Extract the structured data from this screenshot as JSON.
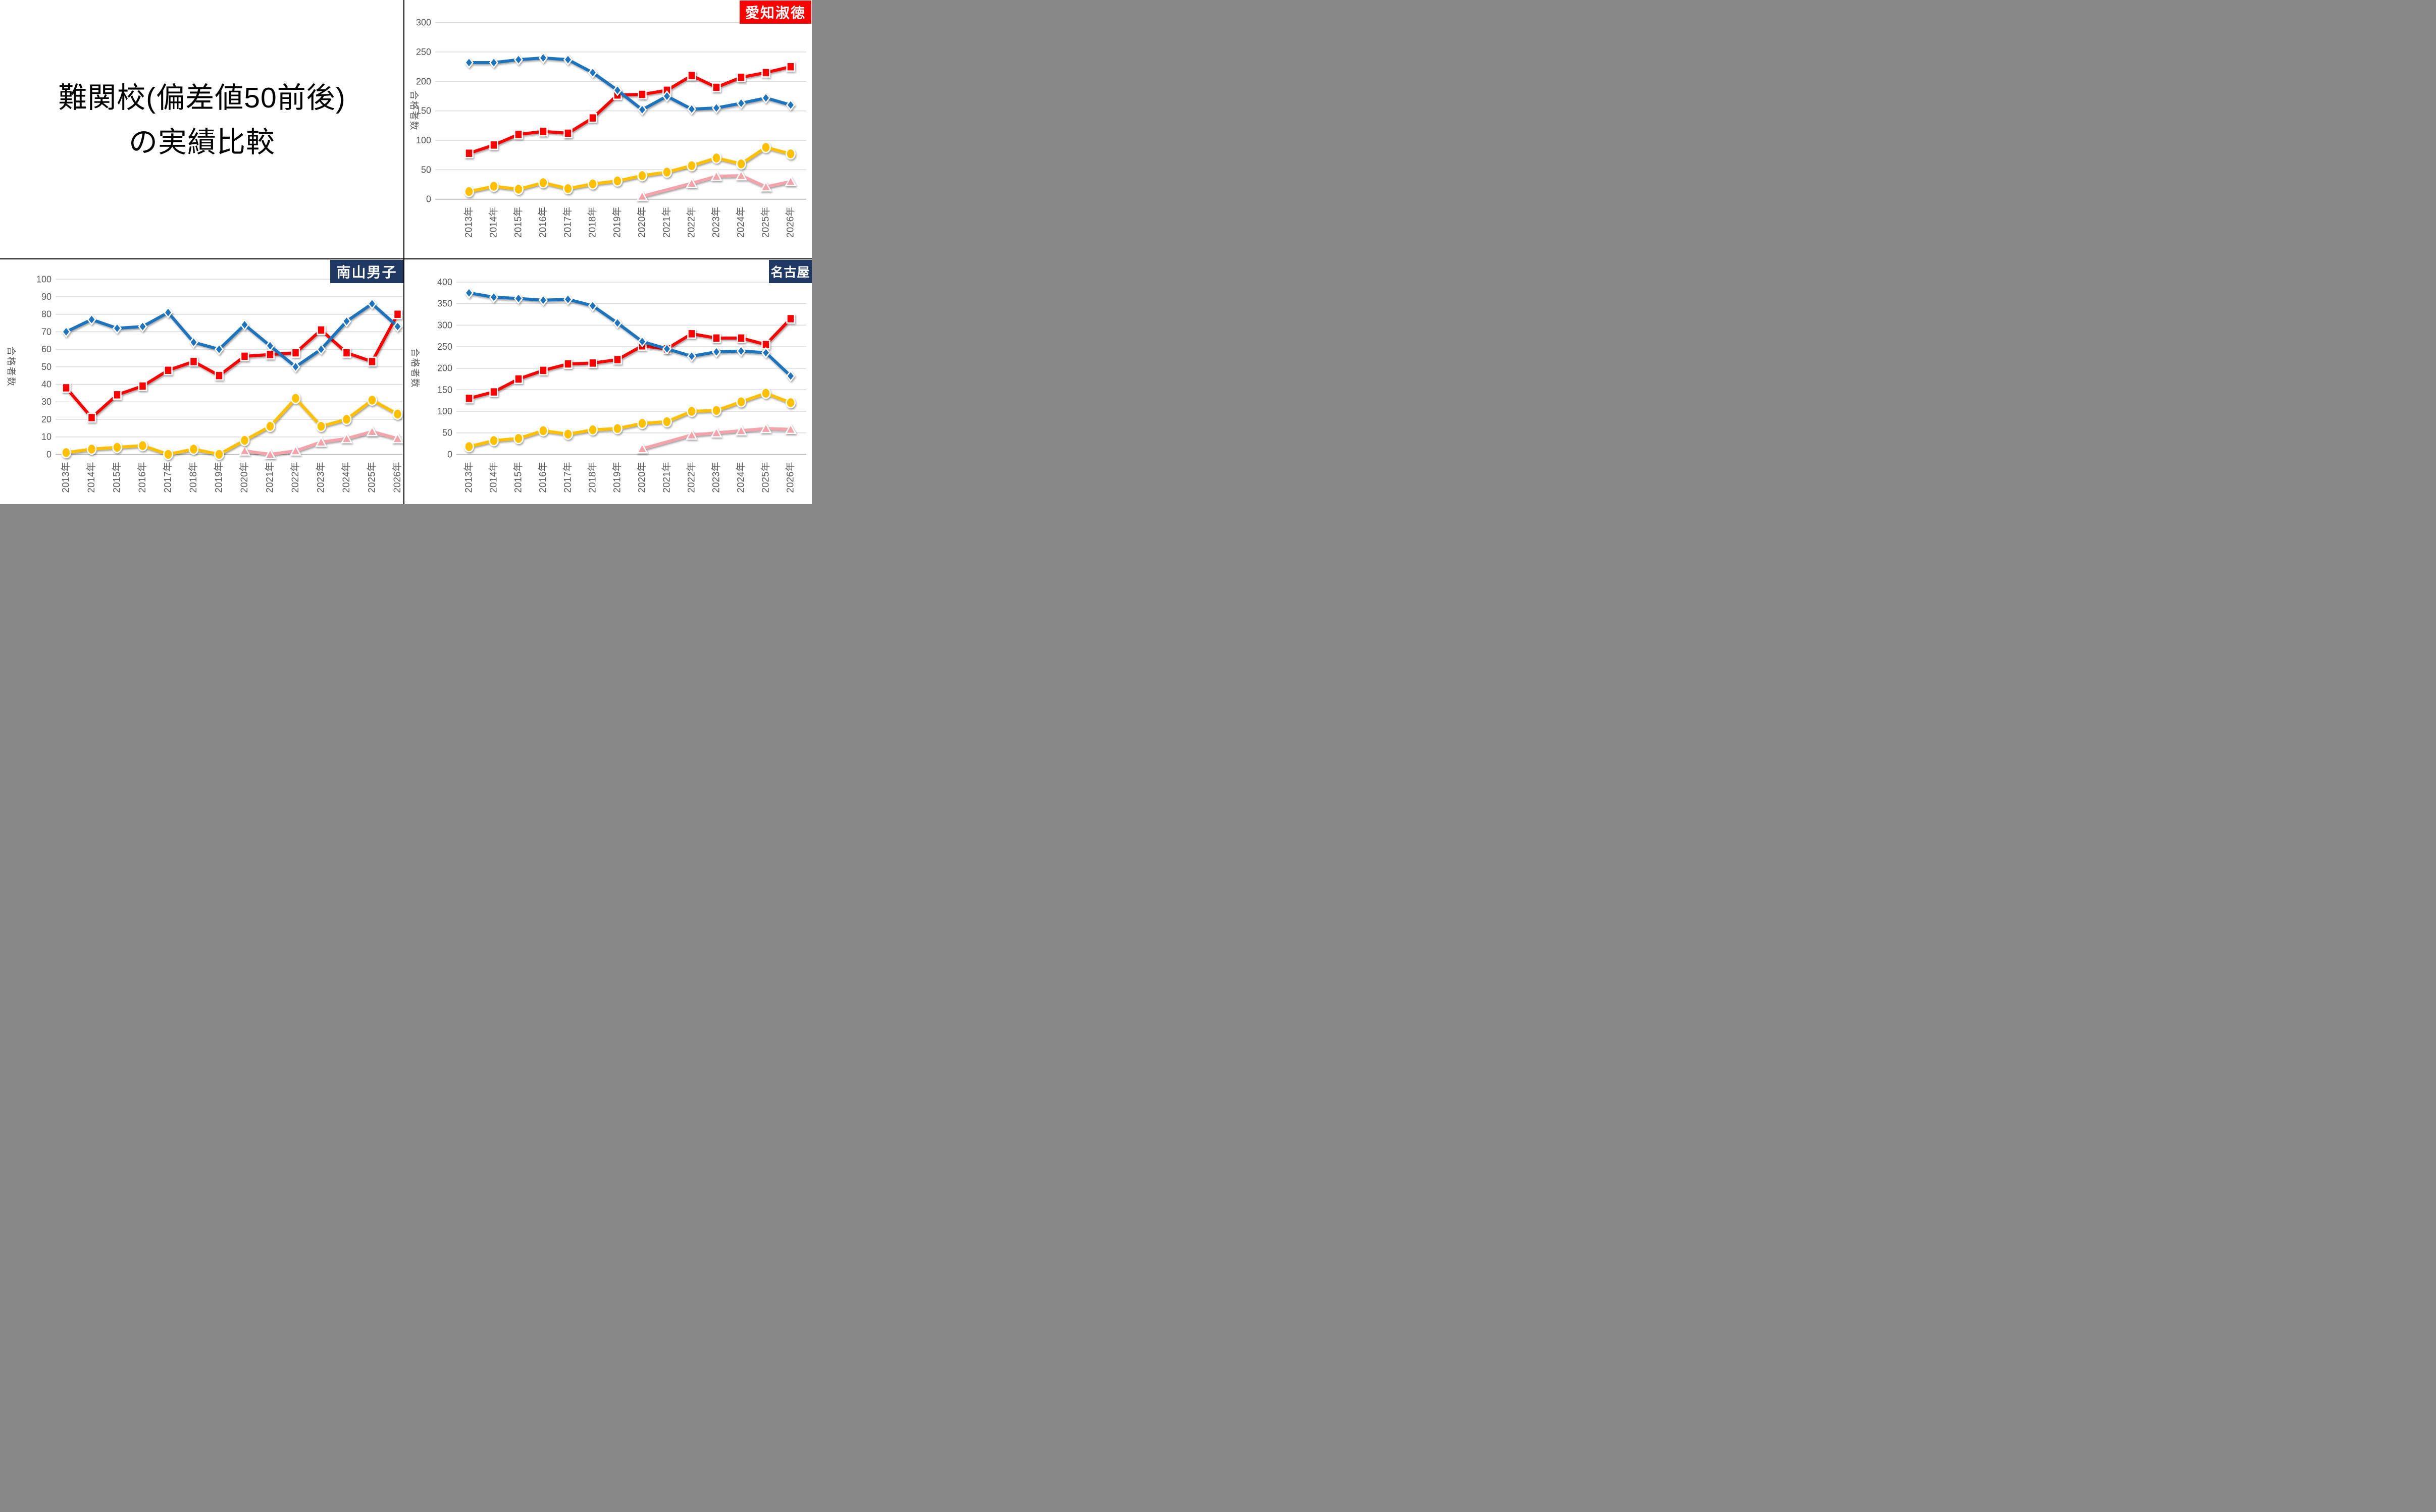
{
  "title": {
    "line1": "難関校(偏差値50前後)",
    "line2": "の実績比較"
  },
  "colors": {
    "series_blue": "#1e73be",
    "series_red": "#fe0000",
    "series_yellow": "#ffc000",
    "series_pink": "#f4a3aa",
    "badge_red_bg": "#fe0000",
    "badge_navy_bg": "#1f3864",
    "badge_text": "#ffffff",
    "gridline": "#d9d9d9",
    "axis_line": "#bfbfbf",
    "tick_text": "#595959",
    "divider": "#000000"
  },
  "chart_data": [
    {
      "type": "line",
      "badge": "愛知淑徳",
      "badge_style": "red",
      "ylabel": "合格者数",
      "ylim": [
        0,
        300
      ],
      "ystep": 50,
      "grid": true,
      "legend": "none",
      "x_labels": [
        "2013年",
        "2014年",
        "2015年",
        "2016年",
        "2017年",
        "2018年",
        "2019年",
        "2020年",
        "2021年",
        "2022年",
        "2023年",
        "2024年",
        "2025年",
        "2026年"
      ],
      "series": [
        {
          "name": "blue-diamond",
          "marker": "diamond",
          "color_key": "series_blue",
          "values": [
            232,
            232,
            237,
            240,
            237,
            215,
            185,
            152,
            175,
            153,
            155,
            163,
            172,
            160
          ]
        },
        {
          "name": "red-square",
          "marker": "square",
          "color_key": "series_red",
          "values": [
            78,
            92,
            110,
            115,
            112,
            138,
            177,
            178,
            185,
            210,
            190,
            207,
            215,
            225
          ]
        },
        {
          "name": "yellow-circle",
          "marker": "circle",
          "color_key": "series_yellow",
          "values": [
            13,
            22,
            17,
            28,
            18,
            26,
            31,
            40,
            46,
            57,
            70,
            60,
            88,
            77
          ]
        },
        {
          "name": "pink-triangle",
          "marker": "triangle",
          "color_key": "series_pink",
          "values": [
            null,
            null,
            null,
            null,
            null,
            null,
            null,
            5,
            null,
            27,
            39,
            40,
            21,
            30
          ]
        }
      ]
    },
    {
      "type": "line",
      "badge": "南山男子",
      "badge_style": "navy",
      "ylabel": "合格者数",
      "ylim": [
        0,
        100
      ],
      "ystep": 10,
      "grid": true,
      "legend": "none",
      "x_labels": [
        "2013年",
        "2014年",
        "2015年",
        "2016年",
        "2017年",
        "2018年",
        "2019年",
        "2020年",
        "2021年",
        "2022年",
        "2023年",
        "2024年",
        "2025年",
        "2026年"
      ],
      "series": [
        {
          "name": "blue-diamond",
          "marker": "diamond",
          "color_key": "series_blue",
          "values": [
            70,
            77,
            72,
            73,
            81,
            64,
            60,
            74,
            62,
            50,
            60,
            76,
            86,
            73
          ]
        },
        {
          "name": "red-square",
          "marker": "square",
          "color_key": "series_red",
          "values": [
            38,
            21,
            34,
            39,
            48,
            53,
            45,
            56,
            57,
            58,
            71,
            58,
            53,
            80
          ]
        },
        {
          "name": "yellow-circle",
          "marker": "circle",
          "color_key": "series_yellow",
          "values": [
            1,
            3,
            4,
            5,
            0,
            3,
            0,
            8,
            16,
            32,
            16,
            20,
            31,
            23
          ]
        },
        {
          "name": "pink-triangle",
          "marker": "triangle",
          "color_key": "series_pink",
          "values": [
            null,
            null,
            null,
            null,
            null,
            null,
            null,
            2,
            0,
            2,
            7,
            9,
            13,
            9
          ]
        }
      ]
    },
    {
      "type": "line",
      "badge": "名古屋",
      "badge_style": "navy",
      "ylabel": "合格者数",
      "ylim": [
        0,
        400
      ],
      "ystep": 50,
      "grid": true,
      "legend": "none",
      "x_labels": [
        "2013年",
        "2014年",
        "2015年",
        "2016年",
        "2017年",
        "2018年",
        "2019年",
        "2020年",
        "2021年",
        "2022年",
        "2023年",
        "2024年",
        "2025年",
        "2026年"
      ],
      "series": [
        {
          "name": "blue-diamond",
          "marker": "diamond",
          "color_key": "series_blue",
          "values": [
            375,
            365,
            362,
            358,
            360,
            345,
            305,
            262,
            245,
            228,
            238,
            240,
            236,
            182
          ]
        },
        {
          "name": "red-square",
          "marker": "square",
          "color_key": "series_red",
          "values": [
            130,
            145,
            175,
            195,
            210,
            212,
            220,
            252,
            245,
            280,
            270,
            270,
            255,
            315
          ]
        },
        {
          "name": "yellow-circle",
          "marker": "circle",
          "color_key": "series_yellow",
          "values": [
            18,
            32,
            37,
            55,
            47,
            57,
            60,
            72,
            76,
            100,
            102,
            122,
            142,
            120
          ]
        },
        {
          "name": "pink-triangle",
          "marker": "triangle",
          "color_key": "series_pink",
          "values": [
            null,
            null,
            null,
            null,
            null,
            null,
            null,
            13,
            null,
            45,
            50,
            55,
            60,
            58
          ]
        }
      ]
    }
  ]
}
